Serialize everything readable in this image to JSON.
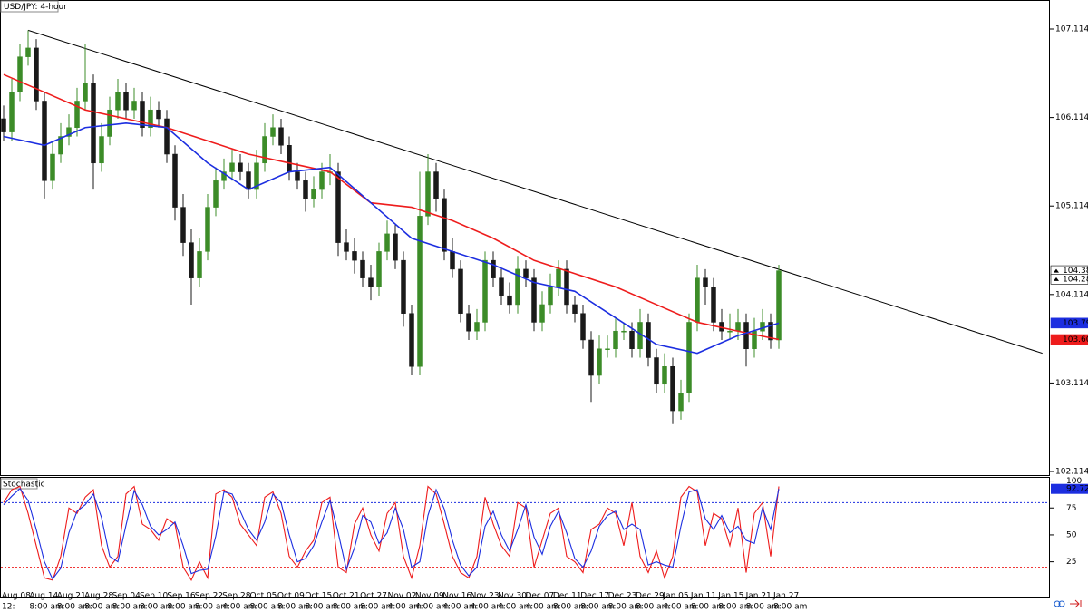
{
  "chart_data": [
    {
      "type": "candlestick",
      "title": "USD/JPY: 4-hour",
      "open": [
        106.1,
        105.95,
        106.4,
        106.8,
        106.9,
        106.3,
        105.4,
        105.7,
        105.9,
        106.0,
        106.3,
        106.5,
        105.6,
        105.9,
        106.2,
        106.4,
        106.2,
        106.3,
        106.0,
        106.2,
        106.1,
        105.7,
        105.1,
        104.7,
        104.3,
        104.6,
        105.1,
        105.4,
        105.5,
        105.6,
        105.5,
        105.3,
        105.6,
        105.9,
        106.0,
        105.8,
        105.5,
        105.4,
        105.2,
        105.3,
        105.5,
        105.5,
        104.7,
        104.6,
        104.5,
        104.3,
        104.2,
        104.6,
        104.8,
        104.5,
        103.9,
        103.3,
        105.0,
        105.5,
        105.2,
        104.6,
        104.4,
        103.9,
        103.7,
        103.8,
        104.5,
        104.3,
        104.1,
        104.0,
        104.4,
        104.3,
        103.8,
        104.0,
        104.2,
        104.4,
        104.0,
        103.9,
        103.6,
        103.2,
        103.5,
        103.5,
        103.7,
        103.7,
        103.5,
        103.8,
        103.4,
        103.1,
        103.3,
        102.8,
        103.0,
        103.8,
        104.3,
        104.2,
        103.8,
        103.7,
        103.7,
        103.8,
        103.5,
        103.7,
        103.8,
        103.6
      ],
      "high": [
        106.25,
        106.55,
        106.95,
        107.1,
        107.0,
        106.4,
        105.85,
        106.05,
        106.15,
        106.45,
        106.95,
        106.6,
        106.05,
        106.35,
        106.55,
        106.5,
        106.45,
        106.4,
        106.35,
        106.3,
        106.2,
        105.8,
        105.25,
        104.85,
        104.75,
        105.25,
        105.55,
        105.65,
        105.75,
        105.7,
        105.6,
        105.75,
        106.05,
        106.15,
        106.1,
        105.9,
        105.6,
        105.5,
        105.45,
        105.6,
        105.7,
        105.6,
        104.85,
        104.75,
        104.6,
        104.45,
        104.7,
        104.95,
        104.9,
        104.6,
        104.0,
        105.5,
        105.7,
        105.6,
        105.3,
        104.75,
        104.5,
        104.0,
        103.95,
        104.6,
        104.6,
        104.4,
        104.25,
        104.55,
        104.5,
        104.4,
        104.15,
        104.35,
        104.5,
        104.5,
        104.1,
        104.0,
        103.7,
        103.65,
        103.65,
        103.85,
        103.8,
        103.8,
        103.95,
        103.9,
        103.5,
        103.45,
        103.4,
        103.15,
        103.9,
        104.45,
        104.4,
        104.3,
        103.95,
        103.9,
        103.95,
        103.9,
        103.85,
        103.95,
        103.9,
        104.45
      ],
      "low": [
        105.85,
        105.85,
        106.3,
        106.7,
        106.2,
        105.2,
        105.3,
        105.6,
        105.8,
        105.9,
        106.2,
        105.3,
        105.5,
        105.8,
        106.1,
        106.1,
        106.1,
        105.9,
        105.9,
        106.0,
        105.6,
        104.95,
        104.55,
        104.0,
        104.2,
        104.5,
        105.0,
        105.3,
        105.4,
        105.4,
        105.2,
        105.2,
        105.5,
        105.8,
        105.7,
        105.4,
        105.3,
        105.05,
        105.1,
        105.2,
        105.35,
        104.55,
        104.5,
        104.35,
        104.2,
        104.05,
        104.1,
        104.5,
        104.4,
        103.75,
        103.2,
        103.2,
        104.9,
        105.05,
        104.5,
        104.3,
        103.8,
        103.6,
        103.6,
        103.7,
        104.2,
        104.0,
        103.9,
        103.9,
        104.2,
        103.7,
        103.7,
        103.9,
        104.1,
        103.9,
        103.8,
        103.5,
        102.9,
        103.1,
        103.4,
        103.4,
        103.6,
        103.4,
        103.4,
        103.3,
        103.0,
        103.0,
        102.65,
        102.7,
        102.9,
        103.7,
        104.0,
        103.7,
        103.6,
        103.6,
        103.6,
        103.3,
        103.4,
        103.6,
        103.5,
        103.5
      ],
      "close": [
        105.95,
        106.4,
        106.8,
        106.9,
        106.3,
        105.4,
        105.7,
        105.9,
        106.0,
        106.3,
        106.5,
        105.6,
        105.9,
        106.2,
        106.4,
        106.2,
        106.3,
        106.0,
        106.2,
        106.1,
        105.7,
        105.1,
        104.7,
        104.3,
        104.6,
        105.1,
        105.4,
        105.5,
        105.6,
        105.5,
        105.3,
        105.6,
        105.9,
        106.0,
        105.8,
        105.5,
        105.4,
        105.2,
        105.3,
        105.5,
        105.5,
        104.7,
        104.6,
        104.5,
        104.3,
        104.2,
        104.6,
        104.8,
        104.5,
        103.9,
        103.3,
        105.0,
        105.5,
        105.2,
        104.6,
        104.4,
        103.9,
        103.7,
        103.8,
        104.5,
        104.3,
        104.1,
        104.0,
        104.4,
        104.3,
        103.8,
        104.0,
        104.2,
        104.4,
        104.0,
        103.9,
        103.6,
        103.2,
        103.5,
        103.5,
        103.7,
        103.7,
        103.5,
        103.8,
        103.4,
        103.1,
        103.3,
        102.8,
        103.0,
        103.8,
        104.3,
        104.2,
        103.8,
        103.7,
        103.7,
        103.8,
        103.5,
        103.7,
        103.8,
        103.6,
        104.383
      ],
      "up_color": "#3c8c28",
      "down_color": "#1a1a1a",
      "series": [
        {
          "color": "#ee1c1c",
          "x": [
            0,
            5,
            10,
            15,
            20,
            25,
            30,
            35,
            40,
            45,
            50,
            55,
            60,
            65,
            70,
            75,
            80,
            85,
            90,
            95
          ],
          "values": [
            106.6,
            106.4,
            106.2,
            106.1,
            106.0,
            105.85,
            105.7,
            105.6,
            105.5,
            105.15,
            105.1,
            104.95,
            104.75,
            104.5,
            104.35,
            104.2,
            104.0,
            103.8,
            103.7,
            103.605
          ]
        },
        {
          "color": "#1c2ee0",
          "x": [
            0,
            5,
            10,
            15,
            20,
            25,
            30,
            35,
            40,
            45,
            50,
            55,
            60,
            65,
            70,
            75,
            80,
            85,
            90,
            95
          ],
          "values": [
            105.9,
            105.8,
            106.0,
            106.05,
            106.0,
            105.6,
            105.3,
            105.5,
            105.55,
            105.15,
            104.75,
            104.6,
            104.45,
            104.25,
            104.15,
            103.85,
            103.55,
            103.45,
            103.65,
            103.791
          ]
        }
      ],
      "trendline": {
        "color": "#000000",
        "x": [
          3,
          127.3
        ],
        "values": [
          107.1,
          103.45
        ]
      },
      "ylim": [
        102.063,
        107.442
      ],
      "yticks": [
        107.114,
        106.114,
        105.114,
        104.114,
        103.114,
        102.114
      ],
      "price_labels": [
        {
          "value": 104.383,
          "color": "#ffffff"
        },
        {
          "value": 104.288,
          "color": "#ffffff"
        },
        {
          "value": 103.791,
          "color": "#1c2ee0"
        },
        {
          "value": 103.605,
          "color": "#ee1c1c"
        }
      ]
    },
    {
      "type": "line",
      "title": "Stochastic",
      "series": [
        {
          "color": "#ee1c1c",
          "values": [
            80,
            92,
            95,
            70,
            40,
            10,
            8,
            30,
            75,
            70,
            85,
            92,
            40,
            20,
            30,
            88,
            95,
            60,
            55,
            45,
            65,
            60,
            20,
            8,
            25,
            10,
            88,
            92,
            85,
            60,
            50,
            40,
            85,
            90,
            70,
            30,
            20,
            35,
            45,
            80,
            85,
            20,
            15,
            60,
            75,
            50,
            35,
            70,
            80,
            30,
            10,
            40,
            95,
            88,
            60,
            30,
            15,
            10,
            30,
            85,
            60,
            40,
            30,
            80,
            75,
            20,
            45,
            70,
            75,
            30,
            25,
            15,
            55,
            60,
            75,
            70,
            40,
            80,
            30,
            15,
            35,
            10,
            30,
            85,
            95,
            90,
            40,
            70,
            65,
            40,
            75,
            15,
            70,
            80,
            30,
            95
          ]
        },
        {
          "color": "#1c2ee0",
          "values": [
            78,
            86,
            93,
            82,
            55,
            25,
            9,
            19,
            52,
            72,
            78,
            88,
            66,
            30,
            25,
            59,
            91,
            78,
            58,
            50,
            55,
            62,
            40,
            14,
            17,
            18,
            49,
            90,
            88,
            72,
            55,
            45,
            62,
            88,
            80,
            50,
            25,
            28,
            40,
            62,
            82,
            52,
            18,
            38,
            68,
            62,
            42,
            52,
            75,
            55,
            20,
            25,
            68,
            92,
            74,
            45,
            22,
            12,
            20,
            58,
            72,
            50,
            35,
            55,
            78,
            48,
            32,
            58,
            72,
            52,
            28,
            20,
            35,
            58,
            68,
            72,
            55,
            60,
            55,
            22,
            25,
            22,
            20,
            58,
            90,
            92,
            65,
            55,
            68,
            52,
            58,
            45,
            42,
            75,
            55,
            92.72
          ]
        }
      ],
      "levels": [
        {
          "value": 80,
          "color": "#1c2ee0"
        },
        {
          "value": 20,
          "color": "#ee1c1c"
        }
      ],
      "ylim": [
        -9,
        103
      ],
      "yticks": [
        100,
        75,
        50,
        25
      ],
      "last_label": {
        "value": 92.72,
        "color": "#1c2ee0"
      },
      "axis_start_label": "12:",
      "date_labels": [
        "Aug 08",
        "Aug 14",
        "Aug 21",
        "Aug 28",
        "Sep 04",
        "Sep 10",
        "Sep 16",
        "Sep 22",
        "Sep 28",
        "Oct 05",
        "Oct 09",
        "Oct 15",
        "Oct 21",
        "Oct 27",
        "Nov 02",
        "Nov 09",
        "Nov 16",
        "Nov 23",
        "Nov 30",
        "Dec 07",
        "Dec 11",
        "Dec 17",
        "Dec 23",
        "Dec 29",
        "Jan 05",
        "Jan 11",
        "Jan 15",
        "Jan 21",
        "Jan 27"
      ],
      "time_labels": [
        "8:00 am",
        "8:00 am",
        "8:00 am",
        "8:00 am",
        "8:00 am",
        "8:00 am",
        "8:00 am",
        "4:00 am",
        "8:00 am",
        "8:00 am",
        "8:00 am",
        "8:00 am",
        "8:00 am",
        "4:00 am",
        "4:00 am",
        "4:00 am",
        "4:00 am",
        "4:00 am",
        "4:00 am",
        "8:00 am",
        "8:00 am",
        "8:00 am",
        "8:00 am",
        "4:00 am",
        "8:00 am",
        "8:00 am",
        "8:00 am",
        "8:00 am"
      ]
    }
  ]
}
